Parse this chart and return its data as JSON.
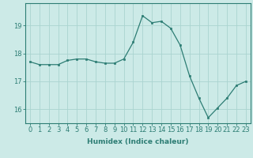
{
  "x": [
    0,
    1,
    2,
    3,
    4,
    5,
    6,
    7,
    8,
    9,
    10,
    11,
    12,
    13,
    14,
    15,
    16,
    17,
    18,
    19,
    20,
    21,
    22,
    23
  ],
  "y": [
    17.7,
    17.6,
    17.6,
    17.6,
    17.75,
    17.8,
    17.8,
    17.7,
    17.65,
    17.65,
    17.8,
    18.4,
    19.35,
    19.1,
    19.15,
    18.9,
    18.3,
    17.2,
    16.4,
    15.7,
    16.05,
    16.4,
    16.85,
    17.0
  ],
  "line_color": "#2d7d74",
  "marker": "s",
  "marker_size": 2.0,
  "bg_color": "#cceae7",
  "grid_color": "#aad4d0",
  "xlabel": "Humidex (Indice chaleur)",
  "ylim": [
    15.5,
    19.8
  ],
  "xlim": [
    -0.5,
    23.5
  ],
  "yticks": [
    16,
    17,
    18,
    19
  ],
  "xticks": [
    0,
    1,
    2,
    3,
    4,
    5,
    6,
    7,
    8,
    9,
    10,
    11,
    12,
    13,
    14,
    15,
    16,
    17,
    18,
    19,
    20,
    21,
    22,
    23
  ],
  "tick_color": "#2d7d74",
  "label_fontsize": 6.5,
  "tick_fontsize": 6.0,
  "spine_color": "#2d7d74"
}
